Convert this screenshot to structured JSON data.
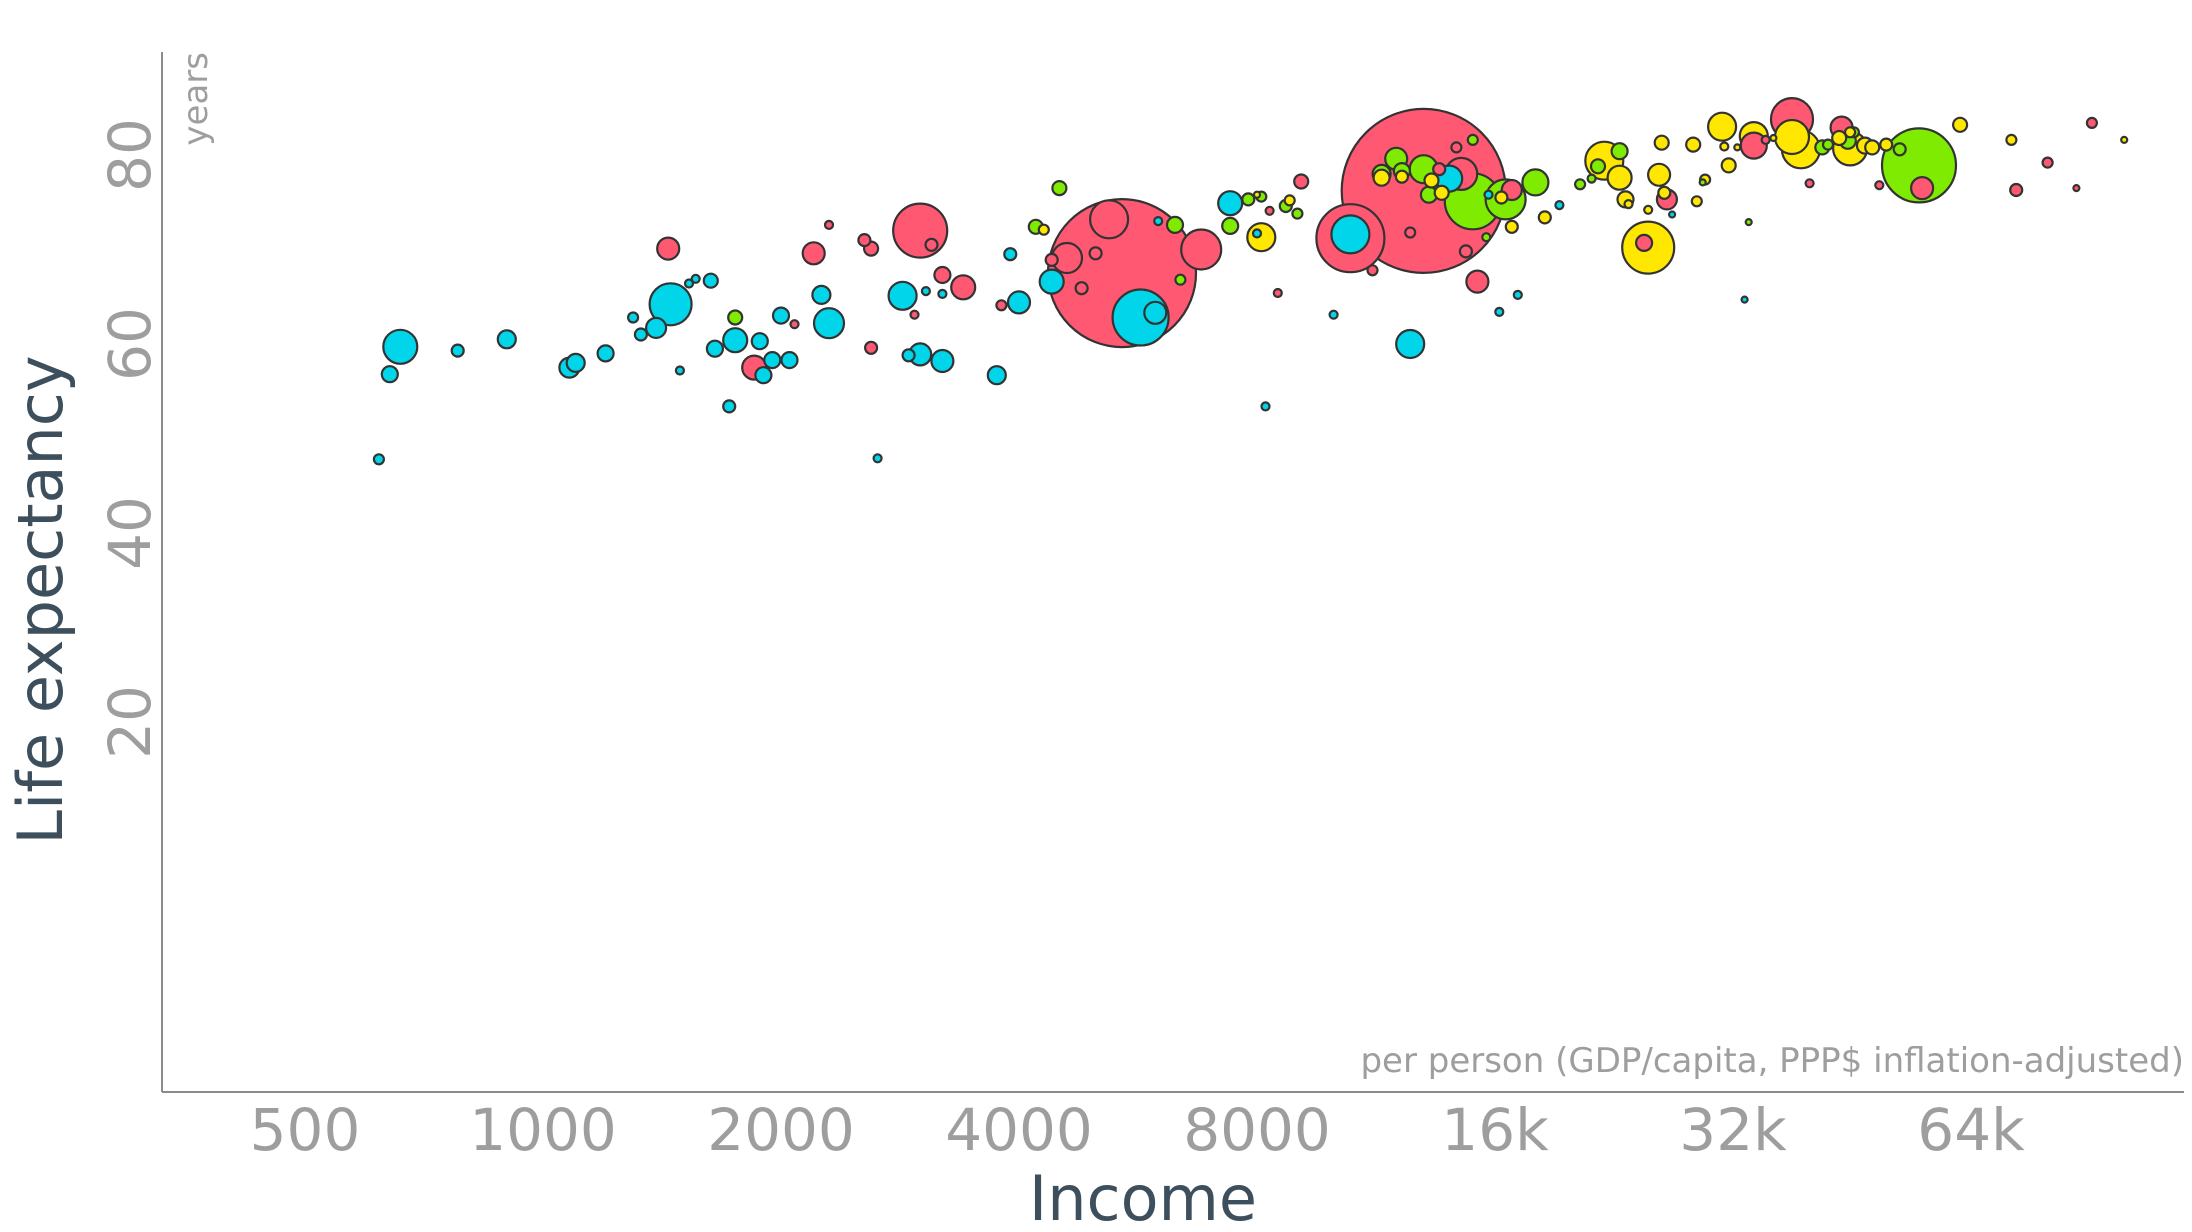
{
  "chart_data": {
    "type": "scatter",
    "xlabel": "Income",
    "x_unit": "per person (GDP/capita, PPP$ inflation-adjusted)",
    "ylabel": "Life expectancy",
    "y_unit": "years",
    "x_scale": "log2",
    "xlim": [
      350,
      110000
    ],
    "ylim": [
      15,
      90
    ],
    "x_ticks": [
      500,
      1000,
      2000,
      4000,
      8000,
      16000,
      32000,
      64000
    ],
    "x_tick_labels": [
      "500",
      "1000",
      "2000",
      "4000",
      "8000",
      "16k",
      "32k",
      "64k"
    ],
    "y_ticks": [
      20,
      40,
      60,
      80
    ],
    "y_tick_labels": [
      "20",
      "40",
      "60",
      "80"
    ],
    "grid": false,
    "legend": "none",
    "colors": {
      "africa": "#00d5e9",
      "asia": "#ff5872",
      "americas": "#7feb00",
      "europe": "#ffe700"
    },
    "points": [
      {
        "x": 5400,
        "y": 67.5,
        "r": 74,
        "region": "asia"
      },
      {
        "x": 13000,
        "y": 76.2,
        "r": 82,
        "region": "asia"
      },
      {
        "x": 55000,
        "y": 78.9,
        "r": 37,
        "region": "americas"
      },
      {
        "x": 15000,
        "y": 75.1,
        "r": 28,
        "region": "americas"
      },
      {
        "x": 10500,
        "y": 71.2,
        "r": 34,
        "region": "asia"
      },
      {
        "x": 5700,
        "y": 62.8,
        "r": 28,
        "region": "africa"
      },
      {
        "x": 3000,
        "y": 72.0,
        "r": 27,
        "region": "asia"
      },
      {
        "x": 16500,
        "y": 75.3,
        "r": 20,
        "region": "americas"
      },
      {
        "x": 10500,
        "y": 71.6,
        "r": 19,
        "region": "africa"
      },
      {
        "x": 25000,
        "y": 70.2,
        "r": 26,
        "region": "europe"
      },
      {
        "x": 38000,
        "y": 83.8,
        "r": 21,
        "region": "asia"
      },
      {
        "x": 22000,
        "y": 79.4,
        "r": 19,
        "region": "europe"
      },
      {
        "x": 39000,
        "y": 80.6,
        "r": 19,
        "region": "europe"
      },
      {
        "x": 45000,
        "y": 80.7,
        "r": 17,
        "region": "europe"
      },
      {
        "x": 38000,
        "y": 81.9,
        "r": 17,
        "region": "europe"
      },
      {
        "x": 34000,
        "y": 82.0,
        "r": 14,
        "region": "europe"
      },
      {
        "x": 31000,
        "y": 83.0,
        "r": 14,
        "region": "europe"
      },
      {
        "x": 34000,
        "y": 81.0,
        "r": 13,
        "region": "asia"
      },
      {
        "x": 6800,
        "y": 70.0,
        "r": 20,
        "region": "asia"
      },
      {
        "x": 5200,
        "y": 73.2,
        "r": 19,
        "region": "asia"
      },
      {
        "x": 4600,
        "y": 69.1,
        "r": 15,
        "region": "asia"
      },
      {
        "x": 14500,
        "y": 78.0,
        "r": 16,
        "region": "asia"
      },
      {
        "x": 13000,
        "y": 78.5,
        "r": 14,
        "region": "americas"
      },
      {
        "x": 14000,
        "y": 77.5,
        "r": 13,
        "region": "africa"
      },
      {
        "x": 12000,
        "y": 79.6,
        "r": 11,
        "region": "americas"
      },
      {
        "x": 18000,
        "y": 77.1,
        "r": 13,
        "region": "americas"
      },
      {
        "x": 23000,
        "y": 77.6,
        "r": 12,
        "region": "europe"
      },
      {
        "x": 12500,
        "y": 60.0,
        "r": 14,
        "region": "africa"
      },
      {
        "x": 1450,
        "y": 64.2,
        "r": 21,
        "region": "africa"
      },
      {
        "x": 660,
        "y": 59.7,
        "r": 17,
        "region": "africa"
      },
      {
        "x": 2300,
        "y": 62.2,
        "r": 15,
        "region": "africa"
      },
      {
        "x": 2850,
        "y": 65.1,
        "r": 14,
        "region": "africa"
      },
      {
        "x": 7400,
        "y": 74.9,
        "r": 12,
        "region": "africa"
      },
      {
        "x": 8100,
        "y": 71.3,
        "r": 14,
        "region": "europe"
      },
      {
        "x": 4400,
        "y": 66.6,
        "r": 12,
        "region": "africa"
      },
      {
        "x": 4000,
        "y": 64.4,
        "r": 11,
        "region": "africa"
      },
      {
        "x": 1750,
        "y": 60.4,
        "r": 12,
        "region": "africa"
      },
      {
        "x": 1850,
        "y": 57.5,
        "r": 12,
        "region": "asia"
      },
      {
        "x": 3400,
        "y": 66.0,
        "r": 12,
        "region": "asia"
      },
      {
        "x": 3200,
        "y": 58.2,
        "r": 11,
        "region": "africa"
      },
      {
        "x": 3000,
        "y": 58.9,
        "r": 11,
        "region": "africa"
      },
      {
        "x": 1440,
        "y": 70.1,
        "r": 11,
        "region": "asia"
      },
      {
        "x": 2200,
        "y": 69.6,
        "r": 11,
        "region": "asia"
      },
      {
        "x": 5950,
        "y": 63.3,
        "r": 11,
        "region": "africa"
      },
      {
        "x": 1390,
        "y": 61.7,
        "r": 10,
        "region": "africa"
      },
      {
        "x": 1080,
        "y": 57.5,
        "r": 10,
        "region": "africa"
      },
      {
        "x": 1100,
        "y": 58.0,
        "r": 9,
        "region": "africa"
      },
      {
        "x": 900,
        "y": 60.5,
        "r": 9,
        "region": "africa"
      },
      {
        "x": 1650,
        "y": 59.5,
        "r": 8,
        "region": "africa"
      },
      {
        "x": 1200,
        "y": 59.0,
        "r": 8,
        "region": "africa"
      },
      {
        "x": 1950,
        "y": 58.3,
        "r": 8,
        "region": "africa"
      },
      {
        "x": 2050,
        "y": 58.3,
        "r": 8,
        "region": "africa"
      },
      {
        "x": 1900,
        "y": 56.7,
        "r": 8,
        "region": "africa"
      },
      {
        "x": 2000,
        "y": 63.0,
        "r": 8,
        "region": "africa"
      },
      {
        "x": 3750,
        "y": 56.7,
        "r": 9,
        "region": "africa"
      },
      {
        "x": 2250,
        "y": 65.2,
        "r": 9,
        "region": "africa"
      },
      {
        "x": 1880,
        "y": 60.3,
        "r": 8,
        "region": "africa"
      },
      {
        "x": 1630,
        "y": 66.7,
        "r": 7,
        "region": "africa"
      },
      {
        "x": 1750,
        "y": 62.8,
        "r": 7,
        "region": "americas"
      },
      {
        "x": 1720,
        "y": 53.4,
        "r": 6,
        "region": "africa"
      },
      {
        "x": 640,
        "y": 56.8,
        "r": 8,
        "region": "africa"
      },
      {
        "x": 620,
        "y": 47.8,
        "r": 5,
        "region": "africa"
      },
      {
        "x": 780,
        "y": 59.3,
        "r": 6,
        "region": "africa"
      },
      {
        "x": 1330,
        "y": 61.0,
        "r": 6,
        "region": "africa"
      },
      {
        "x": 1300,
        "y": 62.8,
        "r": 5,
        "region": "africa"
      },
      {
        "x": 2600,
        "y": 70.1,
        "r": 7,
        "region": "asia"
      },
      {
        "x": 2550,
        "y": 71.0,
        "r": 6,
        "region": "asia"
      },
      {
        "x": 2600,
        "y": 59.6,
        "r": 6,
        "region": "asia"
      },
      {
        "x": 2900,
        "y": 58.8,
        "r": 6,
        "region": "africa"
      },
      {
        "x": 3100,
        "y": 70.5,
        "r": 6,
        "region": "asia"
      },
      {
        "x": 3200,
        "y": 67.3,
        "r": 8,
        "region": "asia"
      },
      {
        "x": 2650,
        "y": 47.9,
        "r": 4,
        "region": "africa"
      },
      {
        "x": 3050,
        "y": 65.6,
        "r": 4,
        "region": "africa"
      },
      {
        "x": 3200,
        "y": 65.3,
        "r": 4,
        "region": "africa"
      },
      {
        "x": 2950,
        "y": 63.1,
        "r": 4,
        "region": "asia"
      },
      {
        "x": 2080,
        "y": 62.1,
        "r": 4,
        "region": "asia"
      },
      {
        "x": 1560,
        "y": 66.9,
        "r": 4,
        "region": "africa"
      },
      {
        "x": 1490,
        "y": 57.2,
        "r": 4,
        "region": "africa"
      },
      {
        "x": 1530,
        "y": 66.4,
        "r": 4,
        "region": "africa"
      },
      {
        "x": 2300,
        "y": 72.6,
        "r": 4,
        "region": "asia"
      },
      {
        "x": 3900,
        "y": 69.5,
        "r": 6,
        "region": "africa"
      },
      {
        "x": 4200,
        "y": 72.4,
        "r": 7,
        "region": "americas"
      },
      {
        "x": 4300,
        "y": 72.1,
        "r": 5,
        "region": "europe"
      },
      {
        "x": 4500,
        "y": 76.5,
        "r": 7,
        "region": "americas"
      },
      {
        "x": 3800,
        "y": 64.1,
        "r": 5,
        "region": "asia"
      },
      {
        "x": 4400,
        "y": 68.9,
        "r": 6,
        "region": "asia"
      },
      {
        "x": 5000,
        "y": 69.6,
        "r": 6,
        "region": "asia"
      },
      {
        "x": 4800,
        "y": 65.9,
        "r": 6,
        "region": "asia"
      },
      {
        "x": 6300,
        "y": 72.6,
        "r": 8,
        "region": "americas"
      },
      {
        "x": 6000,
        "y": 73.0,
        "r": 4,
        "region": "africa"
      },
      {
        "x": 6400,
        "y": 66.8,
        "r": 5,
        "region": "americas"
      },
      {
        "x": 7400,
        "y": 72.5,
        "r": 8,
        "region": "americas"
      },
      {
        "x": 7800,
        "y": 75.3,
        "r": 6,
        "region": "americas"
      },
      {
        "x": 8100,
        "y": 75.6,
        "r": 5,
        "region": "americas"
      },
      {
        "x": 8700,
        "y": 74.6,
        "r": 6,
        "region": "americas"
      },
      {
        "x": 8800,
        "y": 75.2,
        "r": 5,
        "region": "europe"
      },
      {
        "x": 9000,
        "y": 73.8,
        "r": 5,
        "region": "americas"
      },
      {
        "x": 9100,
        "y": 77.2,
        "r": 7,
        "region": "asia"
      },
      {
        "x": 8000,
        "y": 75.8,
        "r": 3,
        "region": "europe"
      },
      {
        "x": 8300,
        "y": 74.1,
        "r": 4,
        "region": "asia"
      },
      {
        "x": 8000,
        "y": 71.7,
        "r": 4,
        "region": "africa"
      },
      {
        "x": 8500,
        "y": 65.4,
        "r": 4,
        "region": "asia"
      },
      {
        "x": 8200,
        "y": 53.4,
        "r": 4,
        "region": "africa"
      },
      {
        "x": 10000,
        "y": 63.1,
        "r": 4,
        "region": "africa"
      },
      {
        "x": 11200,
        "y": 67.8,
        "r": 5,
        "region": "asia"
      },
      {
        "x": 11500,
        "y": 78.0,
        "r": 9,
        "region": "americas"
      },
      {
        "x": 11500,
        "y": 77.6,
        "r": 8,
        "region": "europe"
      },
      {
        "x": 12500,
        "y": 71.8,
        "r": 5,
        "region": "asia"
      },
      {
        "x": 12200,
        "y": 78.3,
        "r": 8,
        "region": "americas"
      },
      {
        "x": 12200,
        "y": 77.7,
        "r": 6,
        "region": "europe"
      },
      {
        "x": 13300,
        "y": 77.3,
        "r": 7,
        "region": "europe"
      },
      {
        "x": 13600,
        "y": 78.5,
        "r": 6,
        "region": "asia"
      },
      {
        "x": 13200,
        "y": 75.8,
        "r": 8,
        "region": "americas"
      },
      {
        "x": 13700,
        "y": 76.0,
        "r": 7,
        "region": "europe"
      },
      {
        "x": 14300,
        "y": 80.8,
        "r": 5,
        "region": "asia"
      },
      {
        "x": 15000,
        "y": 81.6,
        "r": 5,
        "region": "americas"
      },
      {
        "x": 14700,
        "y": 69.8,
        "r": 6,
        "region": "asia"
      },
      {
        "x": 15200,
        "y": 66.6,
        "r": 11,
        "region": "asia"
      },
      {
        "x": 15600,
        "y": 71.3,
        "r": 4,
        "region": "americas"
      },
      {
        "x": 15700,
        "y": 75.8,
        "r": 4,
        "region": "africa"
      },
      {
        "x": 16800,
        "y": 76.3,
        "r": 10,
        "region": "asia"
      },
      {
        "x": 16300,
        "y": 75.5,
        "r": 6,
        "region": "europe"
      },
      {
        "x": 16800,
        "y": 72.4,
        "r": 6,
        "region": "europe"
      },
      {
        "x": 16200,
        "y": 63.4,
        "r": 4,
        "region": "africa"
      },
      {
        "x": 17100,
        "y": 65.2,
        "r": 4,
        "region": "africa"
      },
      {
        "x": 18500,
        "y": 73.4,
        "r": 6,
        "region": "europe"
      },
      {
        "x": 19300,
        "y": 74.7,
        "r": 4,
        "region": "africa"
      },
      {
        "x": 20500,
        "y": 76.9,
        "r": 5,
        "region": "americas"
      },
      {
        "x": 21200,
        "y": 77.5,
        "r": 4,
        "region": "americas"
      },
      {
        "x": 21600,
        "y": 78.8,
        "r": 7,
        "region": "americas"
      },
      {
        "x": 23400,
        "y": 75.3,
        "r": 8,
        "region": "europe"
      },
      {
        "x": 23000,
        "y": 80.4,
        "r": 8,
        "region": "americas"
      },
      {
        "x": 23600,
        "y": 74.8,
        "r": 4,
        "region": "europe"
      },
      {
        "x": 25000,
        "y": 74.2,
        "r": 4,
        "region": "europe"
      },
      {
        "x": 24700,
        "y": 70.7,
        "r": 8,
        "region": "asia"
      },
      {
        "x": 26000,
        "y": 81.3,
        "r": 7,
        "region": "europe"
      },
      {
        "x": 25800,
        "y": 77.9,
        "r": 11,
        "region": "europe"
      },
      {
        "x": 26400,
        "y": 75.3,
        "r": 10,
        "region": "asia"
      },
      {
        "x": 26200,
        "y": 76.0,
        "r": 6,
        "region": "europe"
      },
      {
        "x": 26800,
        "y": 73.7,
        "r": 3,
        "region": "africa"
      },
      {
        "x": 28500,
        "y": 81.1,
        "r": 7,
        "region": "europe"
      },
      {
        "x": 28800,
        "y": 75.1,
        "r": 5,
        "region": "europe"
      },
      {
        "x": 29500,
        "y": 77.4,
        "r": 5,
        "region": "europe"
      },
      {
        "x": 29300,
        "y": 77.1,
        "r": 3,
        "region": "americas"
      },
      {
        "x": 31200,
        "y": 80.9,
        "r": 4,
        "region": "europe"
      },
      {
        "x": 31600,
        "y": 78.9,
        "r": 7,
        "region": "europe"
      },
      {
        "x": 32400,
        "y": 80.8,
        "r": 3,
        "region": "europe"
      },
      {
        "x": 33500,
        "y": 72.9,
        "r": 3,
        "region": "americas"
      },
      {
        "x": 33100,
        "y": 64.7,
        "r": 3,
        "region": "africa"
      },
      {
        "x": 35200,
        "y": 81.6,
        "r": 4,
        "region": "asia"
      },
      {
        "x": 36000,
        "y": 81.8,
        "r": 3,
        "region": "europe"
      },
      {
        "x": 40000,
        "y": 77.0,
        "r": 4,
        "region": "asia"
      },
      {
        "x": 41500,
        "y": 80.8,
        "r": 7,
        "region": "americas"
      },
      {
        "x": 42200,
        "y": 81.1,
        "r": 5,
        "region": "americas"
      },
      {
        "x": 43600,
        "y": 81.8,
        "r": 7,
        "region": "europe"
      },
      {
        "x": 43900,
        "y": 82.9,
        "r": 11,
        "region": "asia"
      },
      {
        "x": 44700,
        "y": 81.5,
        "r": 8,
        "region": "americas"
      },
      {
        "x": 45500,
        "y": 82.4,
        "r": 5,
        "region": "americas"
      },
      {
        "x": 47000,
        "y": 81.0,
        "r": 8,
        "region": "europe"
      },
      {
        "x": 48000,
        "y": 80.8,
        "r": 7,
        "region": "europe"
      },
      {
        "x": 45000,
        "y": 82.4,
        "r": 5,
        "region": "europe"
      },
      {
        "x": 49000,
        "y": 76.8,
        "r": 4,
        "region": "asia"
      },
      {
        "x": 50000,
        "y": 81.1,
        "r": 6,
        "region": "europe"
      },
      {
        "x": 52000,
        "y": 80.6,
        "r": 6,
        "region": "americas"
      },
      {
        "x": 55500,
        "y": 76.5,
        "r": 11,
        "region": "asia"
      },
      {
        "x": 62000,
        "y": 83.2,
        "r": 7,
        "region": "europe"
      },
      {
        "x": 72000,
        "y": 81.6,
        "r": 5,
        "region": "europe"
      },
      {
        "x": 73000,
        "y": 76.3,
        "r": 6,
        "region": "asia"
      },
      {
        "x": 80000,
        "y": 79.2,
        "r": 5,
        "region": "asia"
      },
      {
        "x": 87000,
        "y": 76.5,
        "r": 3,
        "region": "asia"
      },
      {
        "x": 91000,
        "y": 83.4,
        "r": 5,
        "region": "asia"
      },
      {
        "x": 100000,
        "y": 81.6,
        "r": 3,
        "region": "europe"
      }
    ]
  }
}
